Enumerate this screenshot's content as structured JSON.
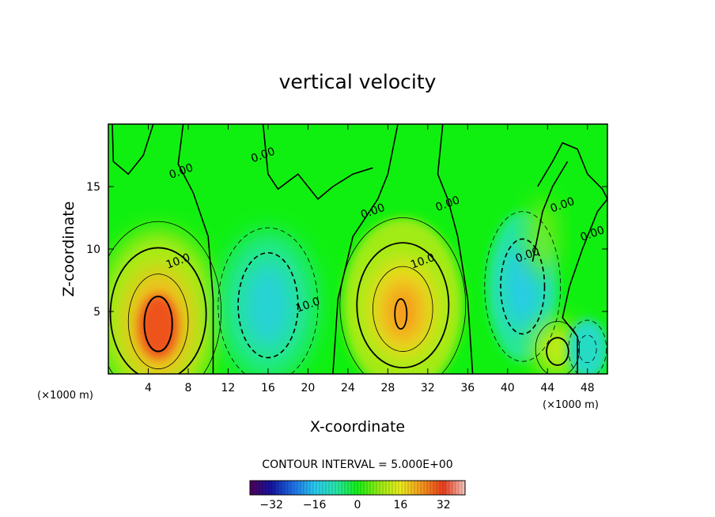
{
  "chart_data": {
    "type": "heatmap",
    "title": "vertical velocity",
    "xlabel": "X-coordinate",
    "ylabel": "Z-coordinate",
    "x_unit": "(×1000 m)",
    "z_unit": "(×1000 m)",
    "xlim": [
      0,
      50
    ],
    "ylim": [
      0,
      20
    ],
    "x_ticks": [
      "4",
      "8",
      "12",
      "16",
      "20",
      "24",
      "28",
      "32",
      "36",
      "40",
      "44",
      "48"
    ],
    "y_ticks": [
      "5",
      "10",
      "15"
    ],
    "contour_interval_text": "CONTOUR INTERVAL = 5.000E+00",
    "contour_labels": [
      {
        "text": "10.0",
        "x": 7.0,
        "z": 9.0
      },
      {
        "text": "10.0",
        "x": 31.5,
        "z": 9.0
      },
      {
        "text": "10.0",
        "x": 20.0,
        "z": 5.5
      },
      {
        "text": "0.00",
        "x": 15.5,
        "z": 17.5
      },
      {
        "text": "0.00",
        "x": 7.3,
        "z": 16.2
      },
      {
        "text": "0.00",
        "x": 26.5,
        "z": 13.0
      },
      {
        "text": "0.00",
        "x": 34.0,
        "z": 13.6
      },
      {
        "text": "0.00",
        "x": 45.5,
        "z": 13.5
      },
      {
        "text": "0.00",
        "x": 48.5,
        "z": 11.2
      },
      {
        "text": "0.00",
        "x": 42.0,
        "z": 9.5
      }
    ],
    "features": [
      {
        "kind": "updraft",
        "x": 5,
        "z": 4,
        "peak": 30
      },
      {
        "kind": "downdraft",
        "x": 16,
        "z": 5.5,
        "peak": -12
      },
      {
        "kind": "updraft",
        "x": 29.5,
        "z": 5,
        "peak": 22
      },
      {
        "kind": "downdraft",
        "x": 41.5,
        "z": 7,
        "peak": -14
      },
      {
        "kind": "updraft",
        "x": 45,
        "z": 1.8,
        "peak": 14
      },
      {
        "kind": "downdraft",
        "x": 48,
        "z": 2,
        "peak": -11
      }
    ],
    "colorbar": {
      "range": [
        -40,
        40
      ],
      "tick_labels": [
        "−32",
        "−16",
        "0",
        "16",
        "32"
      ],
      "tick_values": [
        -32,
        -16,
        0,
        16,
        32
      ]
    }
  }
}
